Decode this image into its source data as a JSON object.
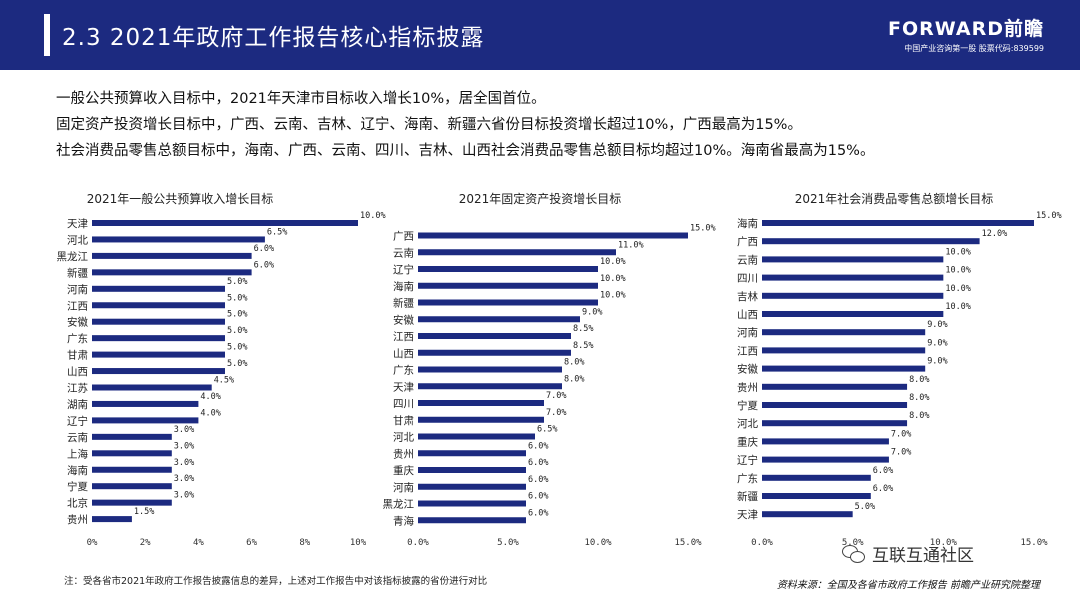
{
  "header": {
    "title": "2.3 2021年政府工作报告核心指标披露",
    "brand_logo": "FORWARD前瞻",
    "brand_sub": "中国产业咨询第一股 股票代码:839599"
  },
  "summary": [
    "一般公共预算收入目标中，2021年天津市目标收入增长10%，居全国首位。",
    "固定资产投资增长目标中，广西、云南、吉林、辽宁、海南、新疆六省份目标投资增长超过10%，广西最高为15%。",
    "社会消费品零售总额目标中，海南、广西、云南、四川、吉林、山西社会消费品零售总额目标均超过10%。海南省最高为15%。"
  ],
  "colors": {
    "header_bg": "#1c2a80",
    "bar": "#1c2a80"
  },
  "chart_data": [
    {
      "type": "bar",
      "orientation": "horizontal",
      "title": "2021年一般公共预算收入增长目标",
      "categories": [
        "天津",
        "河北",
        "黑龙江",
        "新疆",
        "河南",
        "江西",
        "安徽",
        "广东",
        "甘肃",
        "山西",
        "江苏",
        "湖南",
        "辽宁",
        "云南",
        "上海",
        "海南",
        "宁夏",
        "北京",
        "贵州"
      ],
      "values": [
        10.0,
        6.5,
        6.0,
        6.0,
        5.0,
        5.0,
        5.0,
        5.0,
        5.0,
        5.0,
        4.5,
        4.0,
        4.0,
        3.0,
        3.0,
        3.0,
        3.0,
        3.0,
        1.5
      ],
      "value_labels": [
        "10.0%",
        "6.5%",
        "6.0%",
        "6.0%",
        "5.0%",
        "5.0%",
        "5.0%",
        "5.0%",
        "5.0%",
        "5.0%",
        "4.5%",
        "4.0%",
        "4.0%",
        "3.0%",
        "3.0%",
        "3.0%",
        "3.0%",
        "3.0%",
        "1.5%"
      ],
      "xlim": [
        0,
        10
      ],
      "ticks": [
        0,
        2,
        4,
        6,
        8,
        10
      ],
      "tick_labels": [
        "0%",
        "2%",
        "4%",
        "6%",
        "8%",
        "10%"
      ],
      "grid": false
    },
    {
      "type": "bar",
      "orientation": "horizontal",
      "title": "2021年固定资产投资增长目标",
      "categories": [
        "广西",
        "云南",
        "辽宁",
        "海南",
        "新疆",
        "安徽",
        "江西",
        "山西",
        "广东",
        "天津",
        "四川",
        "甘肃",
        "河北",
        "贵州",
        "重庆",
        "河南",
        "黑龙江",
        "青海"
      ],
      "values": [
        15.0,
        11.0,
        10.0,
        10.0,
        10.0,
        9.0,
        8.5,
        8.5,
        8.0,
        8.0,
        7.0,
        7.0,
        6.5,
        6.0,
        6.0,
        6.0,
        6.0,
        6.0
      ],
      "value_labels": [
        "15.0%",
        "11.0%",
        "10.0%",
        "10.0%",
        "10.0%",
        "9.0%",
        "8.5%",
        "8.5%",
        "8.0%",
        "8.0%",
        "7.0%",
        "7.0%",
        "6.5%",
        "6.0%",
        "6.0%",
        "6.0%",
        "6.0%",
        "6.0%"
      ],
      "xlim": [
        0,
        15
      ],
      "ticks": [
        0,
        5,
        10,
        15
      ],
      "tick_labels": [
        "0.0%",
        "5.0%",
        "10.0%",
        "15.0%"
      ],
      "grid": false
    },
    {
      "type": "bar",
      "orientation": "horizontal",
      "title": "2021年社会消费品零售总额增长目标",
      "categories": [
        "海南",
        "广西",
        "云南",
        "四川",
        "吉林",
        "山西",
        "河南",
        "江西",
        "安徽",
        "贵州",
        "宁夏",
        "河北",
        "重庆",
        "辽宁",
        "广东",
        "新疆",
        "天津"
      ],
      "values": [
        15.0,
        12.0,
        10.0,
        10.0,
        10.0,
        10.0,
        9.0,
        9.0,
        9.0,
        8.0,
        8.0,
        8.0,
        7.0,
        7.0,
        6.0,
        6.0,
        5.0
      ],
      "value_labels": [
        "15.0%",
        "12.0%",
        "10.0%",
        "10.0%",
        "10.0%",
        "10.0%",
        "9.0%",
        "9.0%",
        "9.0%",
        "8.0%",
        "8.0%",
        "8.0%",
        "7.0%",
        "7.0%",
        "6.0%",
        "6.0%",
        "5.0%"
      ],
      "xlim": [
        0,
        15
      ],
      "ticks": [
        0,
        5,
        10,
        15
      ],
      "tick_labels": [
        "0.0%",
        "5.0%",
        "10.0%",
        "15.0%"
      ],
      "grid": false
    }
  ],
  "footer": {
    "note": "注：受各省市2021年政府工作报告披露信息的差异，上述对工作报告中对该指标披露的省份进行对比",
    "source": "资料来源：全国及各省市政府工作报告 前瞻产业研究院整理",
    "wechat_name": "互联互通社区",
    "wechat_icon": "wechat-icon"
  }
}
